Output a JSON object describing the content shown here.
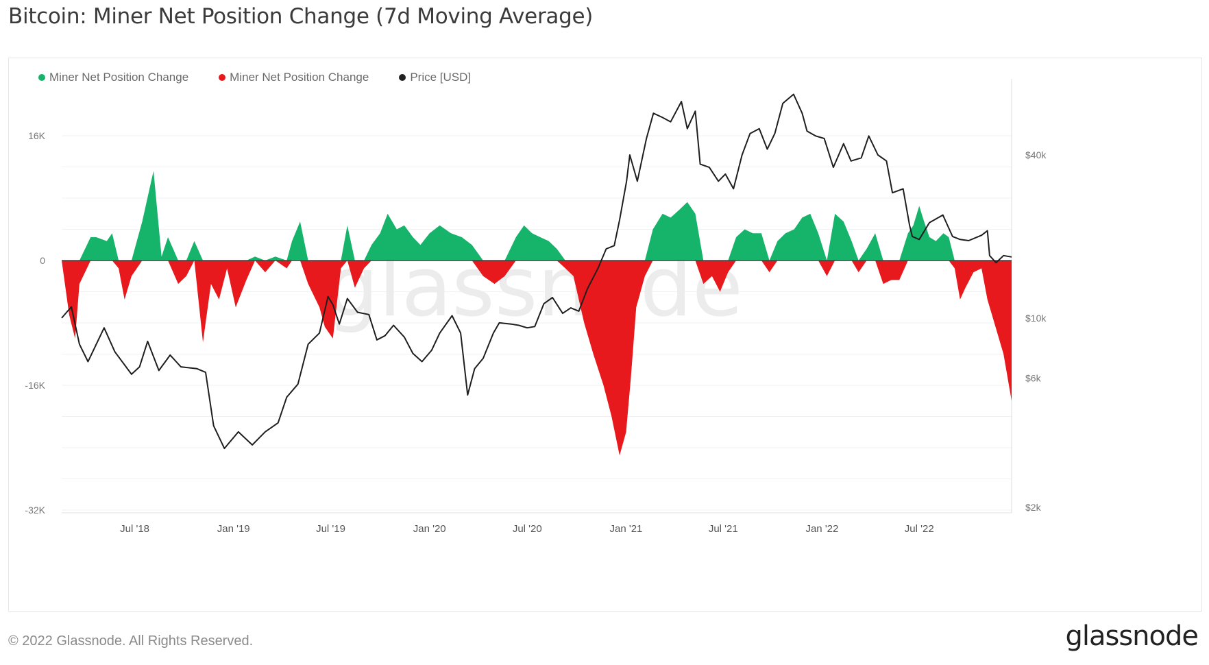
{
  "title": "Bitcoin: Miner Net Position Change (7d Moving Average)",
  "legend": [
    {
      "label": "Miner Net Position Change",
      "color": "#16b36b"
    },
    {
      "label": "Miner Net Position Change",
      "color": "#e8191c"
    },
    {
      "label": "Price [USD]",
      "color": "#222222"
    }
  ],
  "footer": "© 2022 Glassnode. All Rights Reserved.",
  "brand": "glassnode",
  "watermark": "glassnode",
  "chart_data": {
    "type": "area",
    "left_axis": {
      "ticks": [
        "16K",
        "0",
        "-16K",
        "-32K"
      ],
      "values": [
        16000,
        0,
        -16000,
        -32000
      ],
      "range": [
        -32000,
        16000
      ]
    },
    "right_axis": {
      "scale": "log",
      "ticks": [
        "$40k",
        "$10k",
        "$6k",
        "$2k"
      ],
      "values": [
        40000,
        10000,
        6000,
        2000
      ],
      "range": [
        2000,
        60000
      ]
    },
    "x_ticks": [
      "Jul '18",
      "Jan '19",
      "Jul '19",
      "Jan '20",
      "Jul '20",
      "Jan '21",
      "Jul '21",
      "Jan '22",
      "Jul '22"
    ],
    "x_tick_dates": [
      "2018-07-01",
      "2019-01-01",
      "2019-07-01",
      "2020-01-01",
      "2020-07-01",
      "2021-01-01",
      "2021-07-01",
      "2022-01-01",
      "2022-07-01"
    ],
    "x_range": [
      "2018-02-15",
      "2022-12-20"
    ],
    "grid": true,
    "legend_position": "top-left",
    "net_position": {
      "dates": [
        "2018-02-15",
        "2018-03-01",
        "2018-03-12",
        "2018-03-20",
        "2018-04-10",
        "2018-04-20",
        "2018-05-10",
        "2018-05-20",
        "2018-06-01",
        "2018-06-12",
        "2018-06-25",
        "2018-07-15",
        "2018-08-05",
        "2018-08-20",
        "2018-09-01",
        "2018-09-20",
        "2018-10-05",
        "2018-10-20",
        "2018-11-05",
        "2018-11-20",
        "2018-12-05",
        "2018-12-20",
        "2019-01-05",
        "2019-01-25",
        "2019-02-10",
        "2019-03-01",
        "2019-03-20",
        "2019-04-10",
        "2019-04-20",
        "2019-05-05",
        "2019-05-20",
        "2019-06-10",
        "2019-06-20",
        "2019-07-05",
        "2019-07-20",
        "2019-08-01",
        "2019-08-15",
        "2019-09-01",
        "2019-09-15",
        "2019-10-01",
        "2019-10-15",
        "2019-11-01",
        "2019-11-15",
        "2019-12-01",
        "2019-12-15",
        "2020-01-01",
        "2020-01-20",
        "2020-02-10",
        "2020-03-01",
        "2020-03-20",
        "2020-04-10",
        "2020-05-01",
        "2020-05-20",
        "2020-06-10",
        "2020-06-25",
        "2020-07-10",
        "2020-07-25",
        "2020-08-10",
        "2020-08-25",
        "2020-09-10",
        "2020-09-25",
        "2020-10-15",
        "2020-11-01",
        "2020-11-20",
        "2020-12-05",
        "2020-12-20",
        "2021-01-01",
        "2021-01-10",
        "2021-01-20",
        "2021-02-05",
        "2021-02-20",
        "2021-03-10",
        "2021-03-25",
        "2021-04-10",
        "2021-04-25",
        "2021-05-10",
        "2021-05-25",
        "2021-06-10",
        "2021-06-25",
        "2021-07-10",
        "2021-07-25",
        "2021-08-10",
        "2021-08-25",
        "2021-09-10",
        "2021-09-25",
        "2021-10-10",
        "2021-10-25",
        "2021-11-10",
        "2021-11-25",
        "2021-12-10",
        "2021-12-25",
        "2022-01-10",
        "2022-01-25",
        "2022-02-10",
        "2022-02-25",
        "2022-03-10",
        "2022-03-25",
        "2022-04-10",
        "2022-04-25",
        "2022-05-10",
        "2022-05-25",
        "2022-06-10",
        "2022-06-20",
        "2022-07-01",
        "2022-07-10",
        "2022-07-20",
        "2022-08-01",
        "2022-08-15",
        "2022-08-25",
        "2022-09-05",
        "2022-09-15",
        "2022-09-25",
        "2022-10-10",
        "2022-10-25",
        "2022-11-05",
        "2022-11-20",
        "2022-12-05",
        "2022-12-20"
      ],
      "values": [
        0,
        -7000,
        -10000,
        -3000,
        3000,
        3000,
        2500,
        3500,
        -1000,
        -5000,
        -2000,
        5000,
        11500,
        500,
        3000,
        -3000,
        -2000,
        2500,
        -10500,
        -3000,
        -5000,
        -1000,
        -6000,
        -2500,
        500,
        -1500,
        500,
        -1000,
        2500,
        5000,
        -3000,
        -6000,
        -8500,
        -10000,
        -1000,
        4500,
        -3500,
        -1000,
        2000,
        3500,
        6000,
        4000,
        4500,
        3000,
        2000,
        3500,
        4500,
        3500,
        3000,
        2000,
        -2000,
        -3000,
        -2000,
        3000,
        4500,
        3500,
        3000,
        2500,
        1500,
        -1000,
        -2000,
        -8000,
        -12000,
        -16000,
        -20000,
        -25000,
        -22000,
        -15000,
        -6000,
        -2000,
        4000,
        6000,
        5500,
        6500,
        7500,
        6000,
        -3000,
        -2000,
        -4000,
        -1500,
        3000,
        4000,
        3500,
        3500,
        -1500,
        2500,
        3500,
        4000,
        5500,
        6000,
        3500,
        -2000,
        6000,
        5000,
        2500,
        -1500,
        1500,
        3500,
        -3000,
        -2500,
        -2500,
        3500,
        4500,
        7000,
        5000,
        3000,
        2500,
        3500,
        3000,
        -1000,
        -5000,
        -3500,
        -1500,
        -1000,
        -5000,
        -8500,
        -12000,
        -18000
      ],
      "positive_color": "#16b36b",
      "negative_color": "#e8191c"
    },
    "price": {
      "dates": [
        "2018-02-15",
        "2018-03-05",
        "2018-03-20",
        "2018-04-05",
        "2018-05-05",
        "2018-05-25",
        "2018-06-25",
        "2018-07-10",
        "2018-07-25",
        "2018-08-15",
        "2018-09-05",
        "2018-09-25",
        "2018-10-25",
        "2018-11-10",
        "2018-11-25",
        "2018-12-15",
        "2019-01-10",
        "2019-02-05",
        "2019-03-01",
        "2019-03-25",
        "2019-04-10",
        "2019-05-01",
        "2019-05-20",
        "2019-06-10",
        "2019-06-26",
        "2019-07-05",
        "2019-07-17",
        "2019-08-01",
        "2019-08-20",
        "2019-09-10",
        "2019-09-25",
        "2019-10-10",
        "2019-10-26",
        "2019-11-15",
        "2019-12-01",
        "2019-12-18",
        "2020-01-05",
        "2020-01-20",
        "2020-02-12",
        "2020-02-28",
        "2020-03-12",
        "2020-03-25",
        "2020-04-10",
        "2020-04-29",
        "2020-05-10",
        "2020-06-01",
        "2020-06-15",
        "2020-07-01",
        "2020-07-15",
        "2020-08-01",
        "2020-08-17",
        "2020-09-05",
        "2020-09-20",
        "2020-10-05",
        "2020-10-21",
        "2020-11-10",
        "2020-11-25",
        "2020-12-10",
        "2020-12-20",
        "2021-01-02",
        "2021-01-08",
        "2021-01-22",
        "2021-02-08",
        "2021-02-21",
        "2021-03-10",
        "2021-03-25",
        "2021-04-14",
        "2021-04-25",
        "2021-05-10",
        "2021-05-19",
        "2021-06-05",
        "2021-06-22",
        "2021-07-05",
        "2021-07-20",
        "2021-08-05",
        "2021-08-20",
        "2021-09-06",
        "2021-09-21",
        "2021-10-05",
        "2021-10-20",
        "2021-11-09",
        "2021-11-25",
        "2021-12-04",
        "2021-12-20",
        "2022-01-05",
        "2022-01-22",
        "2022-02-10",
        "2022-02-24",
        "2022-03-15",
        "2022-03-29",
        "2022-04-15",
        "2022-05-01",
        "2022-05-12",
        "2022-06-01",
        "2022-06-13",
        "2022-06-18",
        "2022-07-01",
        "2022-07-20",
        "2022-08-14",
        "2022-09-01",
        "2022-09-15",
        "2022-10-01",
        "2022-10-25",
        "2022-11-05",
        "2022-11-09",
        "2022-11-21",
        "2022-12-05",
        "2022-12-20"
      ],
      "values": [
        10000,
        11000,
        8000,
        6900,
        9200,
        7500,
        6200,
        6600,
        8200,
        6400,
        7300,
        6600,
        6500,
        6300,
        4000,
        3300,
        3800,
        3400,
        3800,
        4100,
        5100,
        5700,
        8000,
        8800,
        12000,
        11200,
        9500,
        11800,
        10500,
        10300,
        8300,
        8600,
        9400,
        8500,
        7400,
        6900,
        7600,
        8800,
        10200,
        8800,
        5200,
        6500,
        7100,
        8800,
        9600,
        9500,
        9400,
        9200,
        9300,
        11300,
        11900,
        10400,
        10900,
        10600,
        12800,
        15300,
        18000,
        18500,
        23000,
        32000,
        40000,
        32000,
        46000,
        57000,
        55000,
        53000,
        63000,
        50000,
        58000,
        37000,
        36000,
        32000,
        34000,
        30000,
        40000,
        48000,
        50000,
        42000,
        48000,
        62000,
        67000,
        57000,
        49000,
        47000,
        46000,
        36000,
        44000,
        38000,
        39000,
        47000,
        40000,
        38000,
        29000,
        30000,
        22000,
        20000,
        19500,
        22500,
        24000,
        20000,
        19500,
        19300,
        20200,
        21000,
        17000,
        16000,
        17000,
        16800
      ]
    }
  }
}
